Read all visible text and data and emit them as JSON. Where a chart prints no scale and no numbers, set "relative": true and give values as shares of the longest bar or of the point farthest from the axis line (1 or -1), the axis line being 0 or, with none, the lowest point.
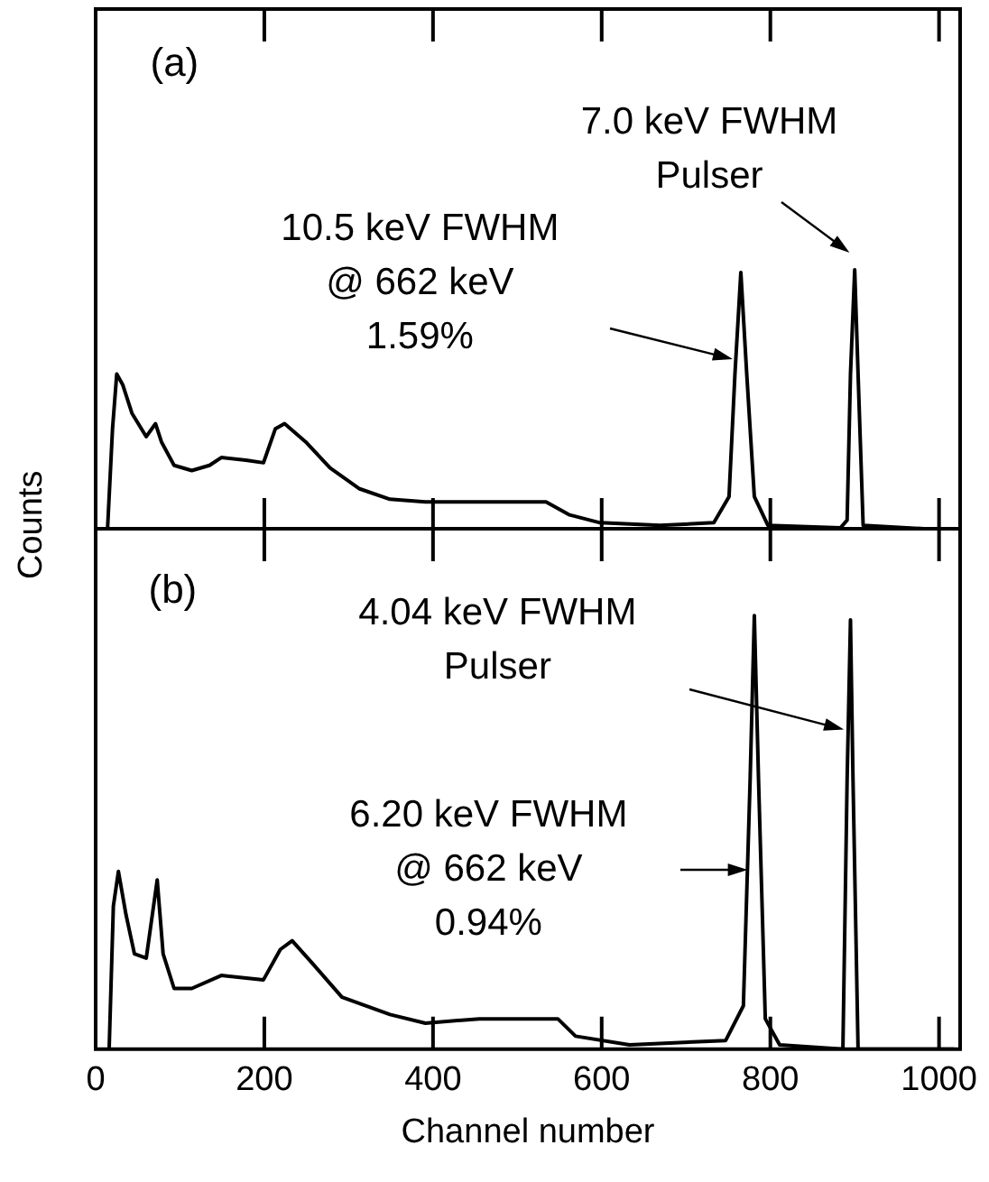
{
  "chart_data": [
    {
      "type": "line",
      "relative": true,
      "ylabel": "Counts",
      "xlim": [
        0,
        1025
      ],
      "xticks": [
        0,
        200,
        400,
        600,
        800,
        1000
      ],
      "tick_labels": false,
      "legend": false,
      "grid": false,
      "marker": "none",
      "line_style": "solid",
      "x": [
        14,
        20,
        25,
        32,
        43,
        60,
        71,
        78,
        93,
        114,
        135,
        149,
        178,
        199,
        213,
        224,
        249,
        278,
        313,
        349,
        391,
        455,
        534,
        562,
        598,
        669,
        733,
        751,
        758,
        765,
        772,
        781,
        797,
        883,
        891,
        895,
        900,
        904,
        910,
        1018
      ],
      "series": [
        {
          "color": "#000000",
          "values": [
            0,
            0.39,
            0.6,
            0.56,
            0.45,
            0.36,
            0.41,
            0.34,
            0.25,
            0.23,
            0.25,
            0.28,
            0.27,
            0.26,
            0.39,
            0.41,
            0.34,
            0.24,
            0.16,
            0.12,
            0.11,
            0.11,
            0.11,
            0.06,
            0.03,
            0.02,
            0.03,
            0.13,
            0.6,
            0.99,
            0.6,
            0.13,
            0.02,
            0.01,
            0.04,
            0.6,
            1,
            0.6,
            0.02,
            0
          ]
        }
      ],
      "annotations": [
        "(a)",
        "7.0 keV FWHM\nPulser",
        "10.5 keV FWHM\n@ 662 keV\n1.59%"
      ]
    },
    {
      "type": "line",
      "relative": true,
      "xlabel": "Channel number",
      "xlim": [
        0,
        1025
      ],
      "xticks": [
        0,
        200,
        400,
        600,
        800,
        1000
      ],
      "tick_labels": "x",
      "legend": false,
      "grid": false,
      "marker": "none",
      "line_style": "solid",
      "x": [
        16,
        21,
        27,
        36,
        46,
        60,
        73,
        80,
        93,
        114,
        149,
        199,
        219,
        233,
        256,
        292,
        349,
        391,
        455,
        548,
        569,
        633,
        747,
        768,
        776,
        781,
        786,
        794,
        811,
        886,
        891,
        895,
        898,
        904,
        1018
      ],
      "series": [
        {
          "color": "#000000",
          "values": [
            0,
            0.33,
            0.41,
            0.31,
            0.22,
            0.21,
            0.39,
            0.22,
            0.14,
            0.14,
            0.17,
            0.16,
            0.23,
            0.25,
            0.2,
            0.12,
            0.08,
            0.06,
            0.07,
            0.07,
            0.03,
            0.01,
            0.02,
            0.1,
            0.62,
            1,
            0.62,
            0.07,
            0.01,
            0,
            0.62,
            0.99,
            0.62,
            0,
            0
          ]
        }
      ],
      "annotations": [
        "(b)",
        "4.04 keV FWHM\nPulser",
        "6.20 keV FWHM\n@ 662 keV\n0.94%"
      ]
    }
  ]
}
